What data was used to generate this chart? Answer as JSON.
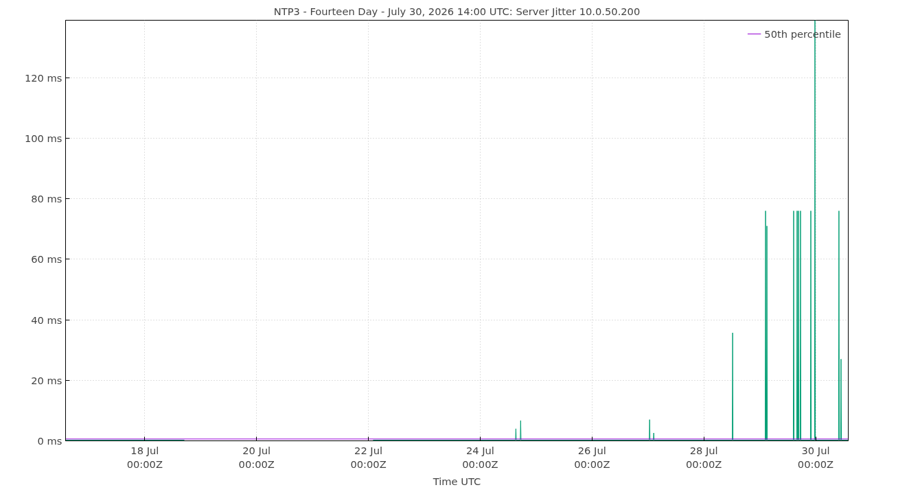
{
  "chart_data": {
    "type": "line",
    "title": "NTP3 - Fourteen Day - July 30, 2026 14:00 UTC: Server Jitter 10.0.50.200",
    "xlabel": "Time UTC",
    "xlim": [
      "2026-07-16T14:00",
      "2026-07-30T14:00"
    ],
    "xticks": [
      {
        "value": "2026-07-18",
        "label": "18 Jul\n00:00Z"
      },
      {
        "value": "2026-07-20",
        "label": "20 Jul\n00:00Z"
      },
      {
        "value": "2026-07-22",
        "label": "22 Jul\n00:00Z"
      },
      {
        "value": "2026-07-24",
        "label": "24 Jul\n00:00Z"
      },
      {
        "value": "2026-07-26",
        "label": "26 Jul\n00:00Z"
      },
      {
        "value": "2026-07-28",
        "label": "28 Jul\n00:00Z"
      },
      {
        "value": "2026-07-30",
        "label": "30 Jul\n00:00Z"
      }
    ],
    "ylim": [
      0,
      139
    ],
    "yticks": [
      {
        "value": 0,
        "label": "0 ms"
      },
      {
        "value": 20,
        "label": "20 ms"
      },
      {
        "value": 40,
        "label": "40 ms"
      },
      {
        "value": 60,
        "label": "60 ms"
      },
      {
        "value": 80,
        "label": "80 ms"
      },
      {
        "value": 100,
        "label": "100 ms"
      },
      {
        "value": 120,
        "label": "120 ms"
      }
    ],
    "grid": true,
    "legend": "top right",
    "marker": "none",
    "line_style": "solid",
    "series": [
      {
        "name": "50th percentile",
        "color": "#9400d3",
        "x": [
          "2026-07-16T14:00",
          "2026-07-30T14:00"
        ],
        "values": [
          0.6,
          0.6
        ]
      },
      {
        "color": "#009e73",
        "x": [
          "2026-07-16T14:00",
          "2026-07-18T17:00",
          "2026-07-20T00:00",
          "2026-07-22T02:00",
          "2026-07-24T15:09",
          "2026-07-24T15:19",
          "2026-07-24T15:29",
          "2026-07-24T17:12",
          "2026-07-24T17:22",
          "2026-07-24T17:32",
          "2026-07-27T00:34",
          "2026-07-27T00:44",
          "2026-07-27T00:54",
          "2026-07-27T02:20",
          "2026-07-27T02:30",
          "2026-07-27T02:40",
          "2026-07-28T12:12",
          "2026-07-28T12:22",
          "2026-07-28T12:32",
          "2026-07-29T02:20",
          "2026-07-29T02:30",
          "2026-07-29T02:40",
          "2026-07-29T02:55",
          "2026-07-29T03:05",
          "2026-07-29T03:15",
          "2026-07-29T14:24",
          "2026-07-29T14:34",
          "2026-07-29T14:44",
          "2026-07-29T15:52",
          "2026-07-29T16:02",
          "2026-07-29T16:12",
          "2026-07-29T16:27",
          "2026-07-29T16:37",
          "2026-07-29T16:47",
          "2026-07-29T17:20",
          "2026-07-29T17:30",
          "2026-07-29T17:40",
          "2026-07-29T21:46",
          "2026-07-29T21:56",
          "2026-07-29T22:06",
          "2026-07-29T23:32",
          "2026-07-29T23:42",
          "2026-07-29T23:52",
          "2026-07-30T09:50",
          "2026-07-30T10:00",
          "2026-07-30T10:10",
          "2026-07-30T10:44",
          "2026-07-30T10:54",
          "2026-07-30T11:04",
          "2026-07-30T14:00"
        ],
        "values": [
          0.2,
          0.2,
          null,
          0.2,
          0.2,
          4,
          0.2,
          0.2,
          6.7,
          0.2,
          0.2,
          7,
          0.2,
          0.2,
          2.6,
          0.2,
          0.2,
          35.7,
          0.2,
          0.2,
          76,
          0.2,
          0.2,
          71,
          0.2,
          0.2,
          76,
          0.2,
          0.2,
          76,
          0.2,
          0.2,
          76,
          0.2,
          0.2,
          76,
          0.2,
          0.2,
          76,
          0.2,
          0.2,
          139,
          0.2,
          0.2,
          76,
          0.2,
          0.2,
          27,
          0.2,
          0.2
        ]
      }
    ]
  }
}
